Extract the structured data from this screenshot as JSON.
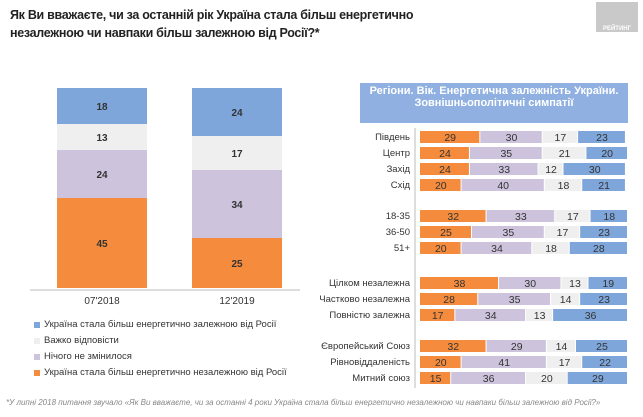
{
  "title": "Як Ви вважаєте, чи за останній рік Україна стала більш енергетично незалежною чи навпаки більш залежною від Росії?*",
  "logo": "РЕЙТИНГ",
  "footnote": "*У липні 2018 питання звучало «Як Ви вважаєте, чи за останні 4 роки Україна стала більш енергетично незалежною чи навпаки більш залежною від Росії?»",
  "colors": {
    "independent": "#f58b3c",
    "nothing": "#cdc3dd",
    "hard": "#efefef",
    "dependent": "#7ea6da"
  },
  "chart_data": [
    {
      "type": "bar",
      "stacked": true,
      "categories": [
        "07'2018",
        "12'2019"
      ],
      "series": [
        {
          "name": "Україна стала більш енергетично незалежною від Росії",
          "values": [
            45,
            25
          ]
        },
        {
          "name": "Нічого не змінилося",
          "values": [
            24,
            34
          ]
        },
        {
          "name": "Важко відповісти",
          "values": [
            13,
            17
          ]
        },
        {
          "name": "Україна стала більш енергетично залежною від Росії",
          "values": [
            18,
            24
          ]
        }
      ],
      "legend_order": [
        "Україна стала більш енергетично залежною від Росії",
        "Важко відповісти",
        "Нічого не змінилося",
        "Україна стала більш енергетично незалежною від Росії"
      ],
      "legend": "bottom-left"
    },
    {
      "type": "bar",
      "orientation": "horizontal",
      "stacked": true,
      "title": "Регіони. Вік. Енергетична залежність України. Зовнішньополітичні симпатії",
      "groups": [
        {
          "rows": [
            {
              "label": "Південь",
              "values": [
                29,
                30,
                17,
                23
              ]
            },
            {
              "label": "Центр",
              "values": [
                24,
                35,
                21,
                20
              ]
            },
            {
              "label": "Захід",
              "values": [
                24,
                33,
                12,
                30
              ]
            },
            {
              "label": "Схід",
              "values": [
                20,
                40,
                18,
                21
              ]
            }
          ]
        },
        {
          "rows": [
            {
              "label": "18-35",
              "values": [
                32,
                33,
                17,
                18
              ]
            },
            {
              "label": "36-50",
              "values": [
                25,
                35,
                17,
                23
              ]
            },
            {
              "label": "51+",
              "values": [
                20,
                34,
                18,
                28
              ]
            }
          ]
        },
        {
          "rows": [
            {
              "label": "Цілком незалежна",
              "values": [
                38,
                30,
                13,
                19
              ]
            },
            {
              "label": "Частково незалежна",
              "values": [
                28,
                35,
                14,
                23
              ]
            },
            {
              "label": "Повністю залежна",
              "values": [
                17,
                34,
                13,
                36
              ]
            }
          ]
        },
        {
          "rows": [
            {
              "label": "Європейський Союз",
              "values": [
                32,
                29,
                14,
                25
              ]
            },
            {
              "label": "Рівновіддаленість",
              "values": [
                20,
                41,
                17,
                22
              ]
            },
            {
              "label": "Митний союз",
              "values": [
                15,
                36,
                20,
                29
              ]
            }
          ]
        }
      ]
    }
  ]
}
